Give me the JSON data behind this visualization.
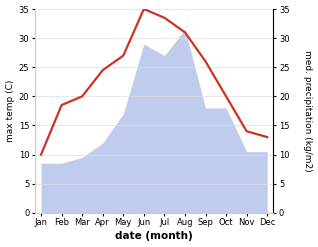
{
  "months": [
    "Jan",
    "Feb",
    "Mar",
    "Apr",
    "May",
    "Jun",
    "Jul",
    "Aug",
    "Sep",
    "Oct",
    "Nov",
    "Dec"
  ],
  "temperature": [
    10.0,
    18.5,
    20.0,
    24.5,
    27.0,
    35.0,
    33.5,
    31.0,
    26.0,
    20.0,
    14.0,
    13.0
  ],
  "precipitation": [
    8.5,
    8.5,
    9.5,
    12.0,
    17.0,
    29.0,
    27.0,
    31.5,
    18.0,
    18.0,
    10.5,
    10.5
  ],
  "temp_color": "#cc3322",
  "precip_color": "#c0ccee",
  "ylim": [
    0,
    35
  ],
  "yticks": [
    0,
    5,
    10,
    15,
    20,
    25,
    30,
    35
  ],
  "ylabel_left": "max temp (C)",
  "ylabel_right": "med. precipitation (kg/m2)",
  "xlabel": "date (month)",
  "bg_color": "#ffffff",
  "spine_color": "#cccccc",
  "grid_color": "#dddddd",
  "temp_linewidth": 1.6,
  "label_fontsize": 6.5,
  "tick_fontsize": 6.0,
  "xlabel_fontsize": 7.5
}
